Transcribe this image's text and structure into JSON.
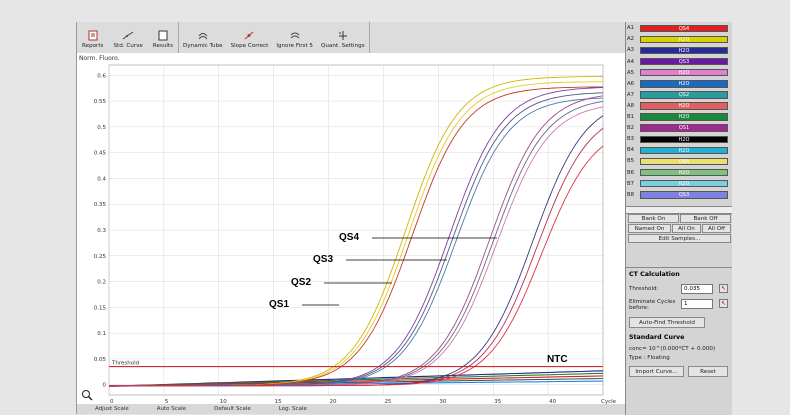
{
  "toolbar": {
    "buttons": [
      {
        "label": "Reports",
        "icon": "report-icon"
      },
      {
        "label": "Std. Curve",
        "icon": "std-curve-icon"
      },
      {
        "label": "Results",
        "icon": "results-icon"
      },
      {
        "label": "Dynamic Tube",
        "icon": "dynamic-tube-icon"
      },
      {
        "label": "Slope Correct",
        "icon": "slope-correct-icon"
      },
      {
        "label": "Ignore First 5",
        "icon": "ignore-first-icon"
      },
      {
        "label": "Quant. Settings",
        "icon": "quant-settings-icon"
      }
    ]
  },
  "plot": {
    "ylabel": "Norm. Fluoro.",
    "threshold_label": "Threshold",
    "x_unit": "Cycle",
    "annotations": [
      "QS4",
      "QS3",
      "QS2",
      "QS1",
      "NTC"
    ]
  },
  "chart_data": {
    "type": "line",
    "ylabel": "Norm. Fluoro.",
    "xlabel": "Cycle",
    "x_ticks": [
      0,
      5,
      10,
      15,
      20,
      25,
      30,
      35,
      40
    ],
    "y_ticks": [
      0,
      0.05,
      0.1,
      0.15,
      0.2,
      0.25,
      0.3,
      0.35,
      0.4,
      0.45,
      0.5,
      0.55,
      0.6
    ],
    "xlim": [
      0,
      45
    ],
    "ylim": [
      -0.02,
      0.62
    ],
    "threshold": 0.035,
    "series": [
      {
        "name": "QS1",
        "color": "#d4b400",
        "midpoint": 22.0,
        "plateau": 0.6
      },
      {
        "name": "QS1",
        "color": "#e4cc20",
        "midpoint": 22.3,
        "plateau": 0.59
      },
      {
        "name": "QS1",
        "color": "#c0392b",
        "midpoint": 22.6,
        "plateau": 0.58
      },
      {
        "name": "QS2",
        "color": "#7b3fa0",
        "midpoint": 26.0,
        "plateau": 0.58
      },
      {
        "name": "QS2",
        "color": "#555a80",
        "midpoint": 26.3,
        "plateau": 0.57
      },
      {
        "name": "QS2",
        "color": "#4a7ab0",
        "midpoint": 26.6,
        "plateau": 0.56
      },
      {
        "name": "QS3",
        "color": "#a04a88",
        "midpoint": 29.7,
        "plateau": 0.57
      },
      {
        "name": "QS3",
        "color": "#6a6a8a",
        "midpoint": 30.0,
        "plateau": 0.56
      },
      {
        "name": "QS3",
        "color": "#d07aa8",
        "midpoint": 30.3,
        "plateau": 0.55
      },
      {
        "name": "QS4",
        "color": "#3a3a7a",
        "midpoint": 33.6,
        "plateau": 0.56
      },
      {
        "name": "QS4",
        "color": "#b03050",
        "midpoint": 34.0,
        "plateau": 0.54
      },
      {
        "name": "QS4",
        "color": "#e03040",
        "midpoint": 34.4,
        "plateau": 0.51
      }
    ],
    "ntc_lines": [
      {
        "name": "NTC",
        "color": "#1a2a80",
        "end": 0.03
      },
      {
        "name": "NTC",
        "color": "#2e7d32",
        "end": 0.025
      },
      {
        "name": "NTC",
        "color": "#c62828",
        "end": 0.02
      },
      {
        "name": "NTC",
        "color": "#555555",
        "end": 0.015
      },
      {
        "name": "NTC",
        "color": "#1e88e5",
        "end": 0.01
      }
    ]
  },
  "samples": [
    {
      "well": "A1",
      "name": "QS4",
      "color": "#e02020"
    },
    {
      "well": "A2",
      "name": "H2O",
      "color": "#d8d000"
    },
    {
      "well": "A3",
      "name": "H2O",
      "color": "#2a2a9a"
    },
    {
      "well": "A4",
      "name": "QS3",
      "color": "#6a1aa0"
    },
    {
      "well": "A5",
      "name": "H2O",
      "color": "#e080d0"
    },
    {
      "well": "A6",
      "name": "H2O",
      "color": "#1a6ac0"
    },
    {
      "well": "A7",
      "name": "QS2",
      "color": "#2a9a9a"
    },
    {
      "well": "A8",
      "name": "H2O",
      "color": "#e06060"
    },
    {
      "well": "B1",
      "name": "H2O",
      "color": "#1a8a3a"
    },
    {
      "well": "B2",
      "name": "QS1",
      "color": "#a02a90"
    },
    {
      "well": "B3",
      "name": "H2O",
      "color": "#000000"
    },
    {
      "well": "B4",
      "name": "H2O",
      "color": "#20b0d0"
    },
    {
      "well": "B5",
      "name": "QS4",
      "color": "#e8e070"
    },
    {
      "well": "B6",
      "name": "H2O",
      "color": "#80c080"
    },
    {
      "well": "B7",
      "name": "H2O",
      "color": "#7ad0e0"
    },
    {
      "well": "B8",
      "name": "QS3",
      "color": "#8080e0"
    }
  ],
  "sample_buttons": {
    "bank_on": "Bank On",
    "bank_off": "Bank Off",
    "named_on": "Named On",
    "all_on": "All On",
    "all_off": "All Off",
    "edit_samples": "Edit Samples..."
  },
  "ct": {
    "title": "CT Calculation",
    "threshold_label": "Threshold:",
    "threshold_value": "0.035",
    "eliminate_label": "Eliminate Cycles before:",
    "eliminate_value": "1",
    "auto_find": "Auto-Find Threshold",
    "std_title": "Standard Curve",
    "equation": "conc= 10^(0.000*CT + 0.000)",
    "type": "Type : Floating",
    "import_curve": "Import Curve...",
    "reset": "Reset"
  },
  "bottom": {
    "adjust_scale": "Adjust Scale",
    "auto_scale": "Auto Scale",
    "default_scale": "Default Scale",
    "log_scale": "Log. Scale"
  }
}
